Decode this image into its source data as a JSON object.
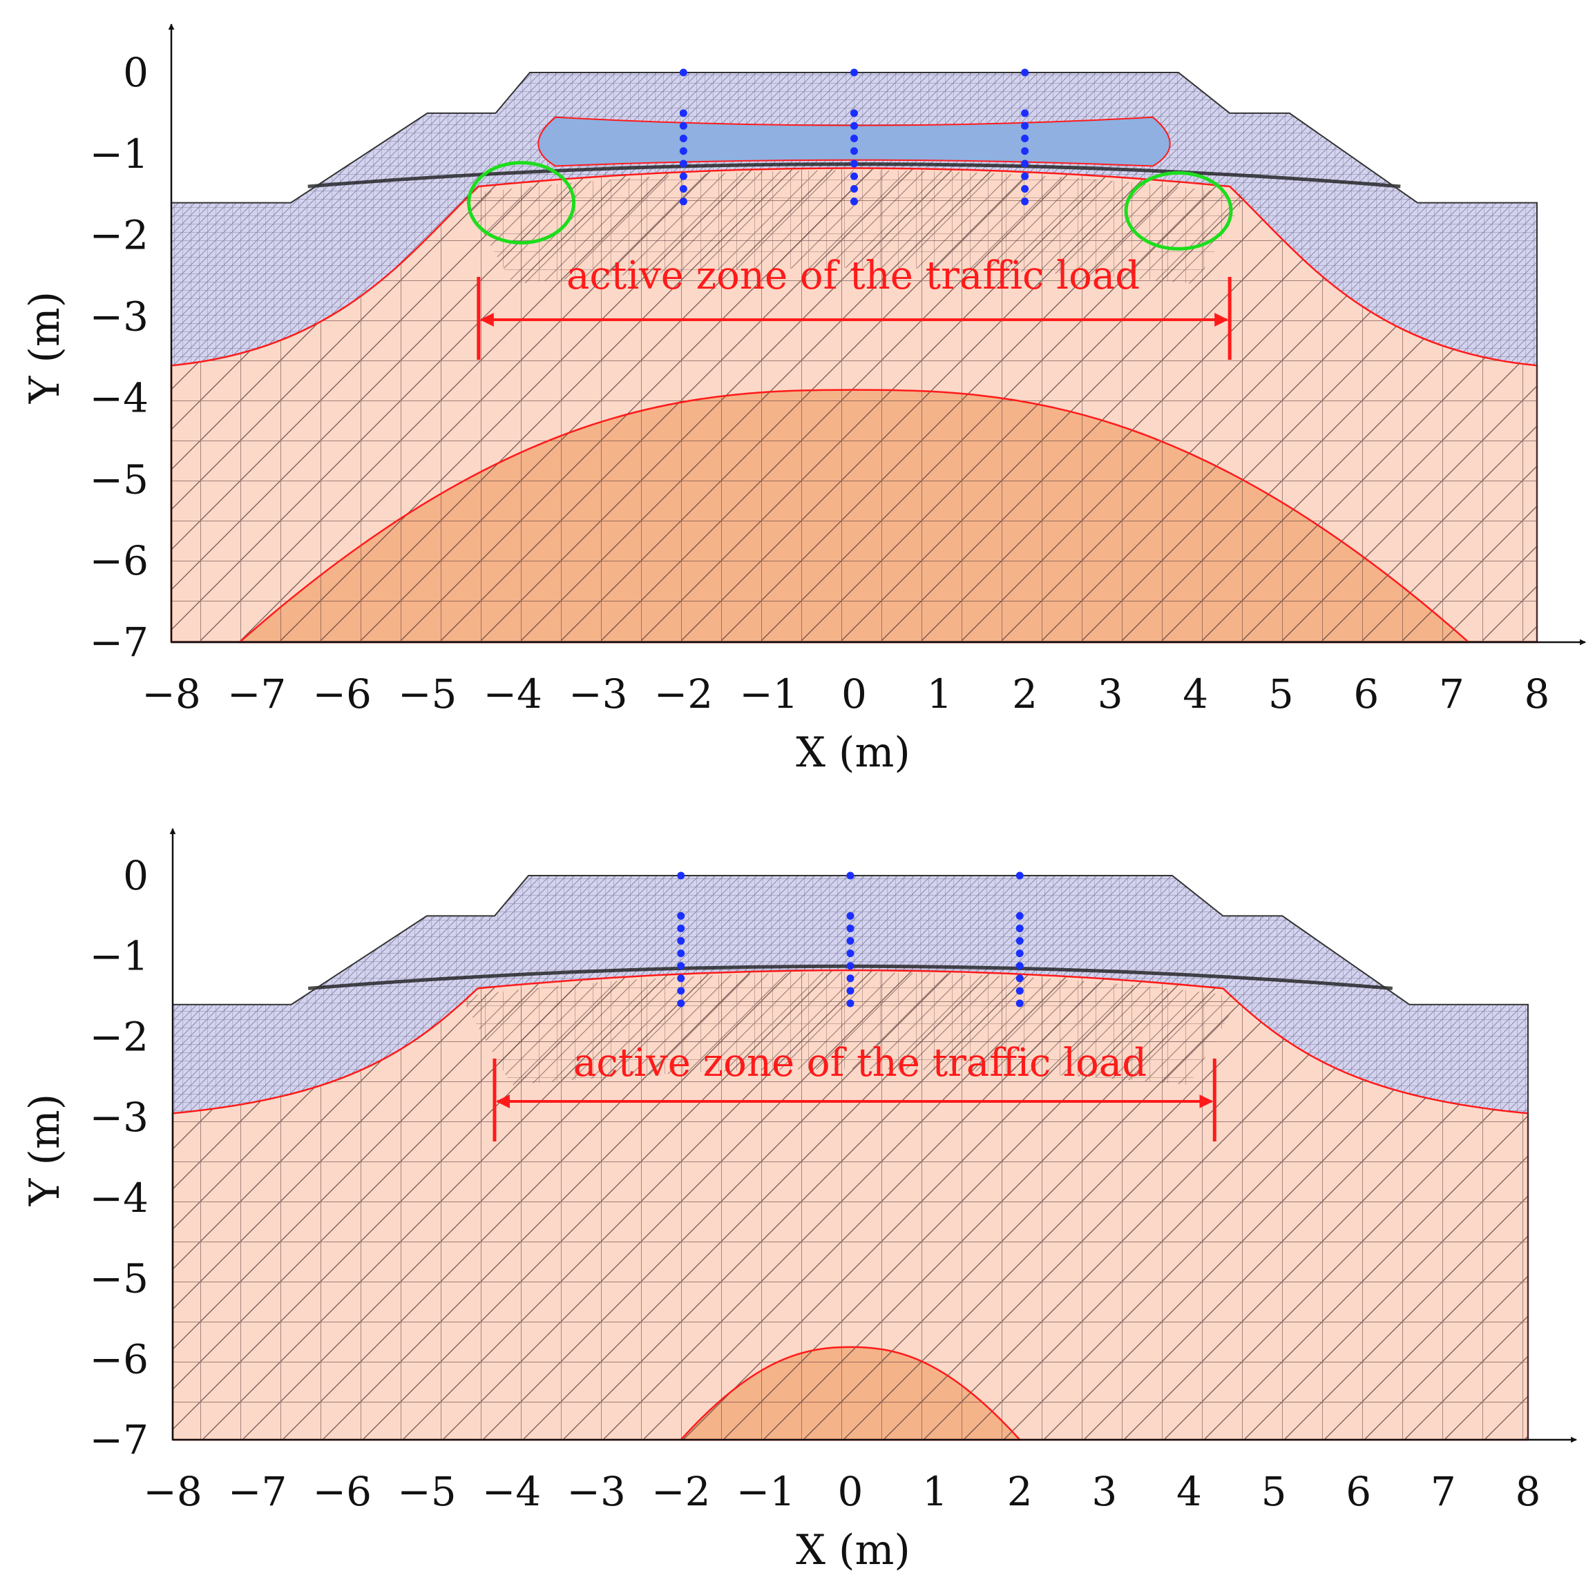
{
  "panels": [
    {
      "id": "top",
      "x_axis": {
        "label": "X (m)",
        "ticks": [
          "−8",
          "−7",
          "−6",
          "−5",
          "−4",
          "−3",
          "−2",
          "−1",
          "0",
          "1",
          "2",
          "3",
          "4",
          "5",
          "6",
          "7",
          "8"
        ]
      },
      "y_axis": {
        "label": "Y (m)",
        "ticks": [
          "0",
          "−1",
          "−2",
          "−3",
          "−4",
          "−5",
          "−6",
          "−7"
        ]
      },
      "annotation": "active zone of the traffic load",
      "zone_bottom_m": -3.6,
      "core_peak_m": -3.9,
      "core_half_width_m": 7.2,
      "active_zone_m": [
        -4.4,
        4.4
      ],
      "has_upper_wet_lens": true,
      "has_green_markers": true
    },
    {
      "id": "bottom",
      "x_axis": {
        "label": "X (m)",
        "ticks": [
          "−8",
          "−7",
          "−6",
          "−5",
          "−4",
          "−3",
          "−2",
          "−1",
          "0",
          "1",
          "2",
          "3",
          "4",
          "5",
          "6",
          "7",
          "8"
        ]
      },
      "y_axis": {
        "label": "Y (m)",
        "ticks": [
          "0",
          "−1",
          "−2",
          "−3",
          "−4",
          "−5",
          "−6",
          "−7"
        ]
      },
      "annotation": "active zone of the traffic load",
      "zone_bottom_m": -2.95,
      "core_peak_m": -5.85,
      "core_half_width_m": 2.0,
      "active_zone_m": [
        -4.2,
        4.3
      ],
      "has_upper_wet_lens": false,
      "has_green_markers": false
    }
  ],
  "colors": {
    "embankment": "#d4d3ef",
    "lens": "#8fb0e0",
    "zone": "#fcd8c8",
    "core": "#f5b38a",
    "mesh": "#4a2f2f",
    "red": "#ff1a1a",
    "sensor": "#1a2fff",
    "marker": "#1ddd1d"
  }
}
